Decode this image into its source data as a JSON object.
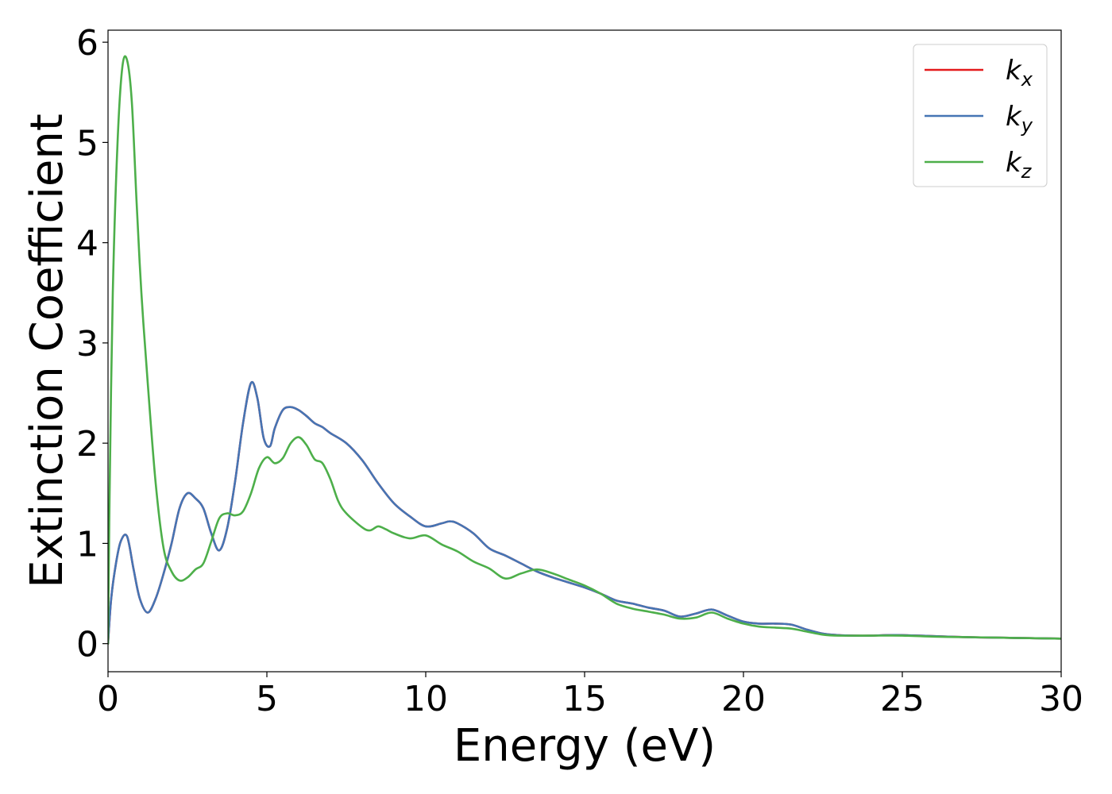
{
  "chart_data": {
    "type": "line",
    "title": "",
    "xlabel": "Energy (eV)",
    "ylabel": "Extinction Coefficient",
    "xlim": [
      0,
      30
    ],
    "ylim": [
      -0.28,
      6.12
    ],
    "xticks": [
      0,
      5,
      10,
      15,
      20,
      25,
      30
    ],
    "yticks": [
      0,
      1,
      2,
      3,
      4,
      5,
      6
    ],
    "grid": false,
    "legend_position": "top-right",
    "series": [
      {
        "name": "k_x",
        "legend_base": "k",
        "legend_sub": "x",
        "color": "#e41a1c",
        "x": [
          0,
          0.1,
          0.25,
          0.4,
          0.6,
          0.8,
          1.0,
          1.25,
          1.5,
          1.75,
          2.0,
          2.25,
          2.5,
          2.75,
          3.0,
          3.25,
          3.5,
          3.75,
          4.0,
          4.25,
          4.5,
          4.7,
          4.9,
          5.1,
          5.25,
          5.5,
          5.75,
          6.0,
          6.25,
          6.5,
          6.75,
          7.0,
          7.5,
          8.0,
          8.5,
          9.0,
          9.5,
          10.0,
          10.5,
          10.75,
          11.0,
          11.5,
          12.0,
          12.5,
          13.0,
          13.5,
          14.0,
          14.5,
          15.0,
          15.5,
          16.0,
          16.5,
          17.0,
          17.5,
          18.0,
          18.5,
          19.0,
          19.5,
          20.0,
          20.5,
          21.0,
          21.5,
          22.0,
          22.5,
          23.0,
          23.5,
          24.0,
          24.5,
          25.0,
          26.0,
          27.0,
          28.0,
          29.0,
          30.0
        ],
        "y": [
          0,
          0.45,
          0.8,
          1.02,
          1.07,
          0.75,
          0.45,
          0.31,
          0.45,
          0.7,
          1.0,
          1.35,
          1.5,
          1.45,
          1.35,
          1.1,
          0.93,
          1.15,
          1.62,
          2.2,
          2.6,
          2.45,
          2.05,
          1.97,
          2.15,
          2.33,
          2.36,
          2.33,
          2.27,
          2.2,
          2.16,
          2.1,
          2.0,
          1.83,
          1.6,
          1.4,
          1.27,
          1.17,
          1.2,
          1.22,
          1.2,
          1.1,
          0.95,
          0.88,
          0.8,
          0.72,
          0.66,
          0.61,
          0.56,
          0.5,
          0.43,
          0.4,
          0.36,
          0.33,
          0.27,
          0.3,
          0.34,
          0.28,
          0.22,
          0.2,
          0.2,
          0.19,
          0.14,
          0.1,
          0.085,
          0.08,
          0.08,
          0.085,
          0.085,
          0.075,
          0.065,
          0.06,
          0.055,
          0.05
        ]
      },
      {
        "name": "k_y",
        "legend_base": "k",
        "legend_sub": "y",
        "color": "#4575b4",
        "x": [
          0,
          0.1,
          0.25,
          0.4,
          0.6,
          0.8,
          1.0,
          1.25,
          1.5,
          1.75,
          2.0,
          2.25,
          2.5,
          2.75,
          3.0,
          3.25,
          3.5,
          3.75,
          4.0,
          4.25,
          4.5,
          4.7,
          4.9,
          5.1,
          5.25,
          5.5,
          5.75,
          6.0,
          6.25,
          6.5,
          6.75,
          7.0,
          7.5,
          8.0,
          8.5,
          9.0,
          9.5,
          10.0,
          10.5,
          10.75,
          11.0,
          11.5,
          12.0,
          12.5,
          13.0,
          13.5,
          14.0,
          14.5,
          15.0,
          15.5,
          16.0,
          16.5,
          17.0,
          17.5,
          18.0,
          18.5,
          19.0,
          19.5,
          20.0,
          20.5,
          21.0,
          21.5,
          22.0,
          22.5,
          23.0,
          23.5,
          24.0,
          24.5,
          25.0,
          26.0,
          27.0,
          28.0,
          29.0,
          30.0
        ],
        "y": [
          0,
          0.45,
          0.8,
          1.02,
          1.07,
          0.75,
          0.45,
          0.31,
          0.45,
          0.7,
          1.0,
          1.35,
          1.5,
          1.45,
          1.35,
          1.1,
          0.93,
          1.15,
          1.62,
          2.2,
          2.6,
          2.45,
          2.05,
          1.97,
          2.15,
          2.33,
          2.36,
          2.33,
          2.27,
          2.2,
          2.16,
          2.1,
          2.0,
          1.83,
          1.6,
          1.4,
          1.27,
          1.17,
          1.2,
          1.22,
          1.2,
          1.1,
          0.95,
          0.88,
          0.8,
          0.72,
          0.66,
          0.61,
          0.56,
          0.5,
          0.43,
          0.4,
          0.36,
          0.33,
          0.27,
          0.3,
          0.34,
          0.28,
          0.22,
          0.2,
          0.2,
          0.19,
          0.14,
          0.1,
          0.085,
          0.08,
          0.08,
          0.085,
          0.085,
          0.075,
          0.065,
          0.06,
          0.055,
          0.05
        ]
      },
      {
        "name": "k_z",
        "legend_base": "k",
        "legend_sub": "z",
        "color": "#4daf4a",
        "x": [
          0,
          0.05,
          0.15,
          0.3,
          0.45,
          0.6,
          0.75,
          0.9,
          1.05,
          1.25,
          1.5,
          1.75,
          2.0,
          2.25,
          2.5,
          2.75,
          3.0,
          3.25,
          3.5,
          3.75,
          4.0,
          4.25,
          4.5,
          4.75,
          5.0,
          5.25,
          5.5,
          5.75,
          6.0,
          6.25,
          6.5,
          6.75,
          7.0,
          7.25,
          7.5,
          8.0,
          8.25,
          8.5,
          8.75,
          9.0,
          9.5,
          10.0,
          10.5,
          11.0,
          11.5,
          12.0,
          12.5,
          13.0,
          13.5,
          14.0,
          14.5,
          15.0,
          15.5,
          16.0,
          16.5,
          17.0,
          17.5,
          18.0,
          18.5,
          19.0,
          19.5,
          20.0,
          20.5,
          21.0,
          21.5,
          22.0,
          22.5,
          23.0,
          24.0,
          25.0,
          26.0,
          27.0,
          28.0,
          29.0,
          30.0
        ],
        "y": [
          0,
          1.5,
          3.5,
          5.0,
          5.75,
          5.82,
          5.4,
          4.4,
          3.5,
          2.6,
          1.6,
          0.95,
          0.72,
          0.63,
          0.66,
          0.74,
          0.8,
          1.02,
          1.25,
          1.3,
          1.28,
          1.32,
          1.5,
          1.75,
          1.86,
          1.8,
          1.85,
          2.0,
          2.06,
          1.98,
          1.84,
          1.8,
          1.64,
          1.42,
          1.3,
          1.16,
          1.13,
          1.17,
          1.14,
          1.1,
          1.05,
          1.08,
          0.99,
          0.92,
          0.82,
          0.75,
          0.65,
          0.7,
          0.74,
          0.7,
          0.64,
          0.58,
          0.5,
          0.4,
          0.35,
          0.32,
          0.29,
          0.25,
          0.26,
          0.31,
          0.25,
          0.2,
          0.17,
          0.16,
          0.15,
          0.12,
          0.09,
          0.08,
          0.08,
          0.08,
          0.07,
          0.065,
          0.06,
          0.055,
          0.05
        ]
      }
    ]
  }
}
